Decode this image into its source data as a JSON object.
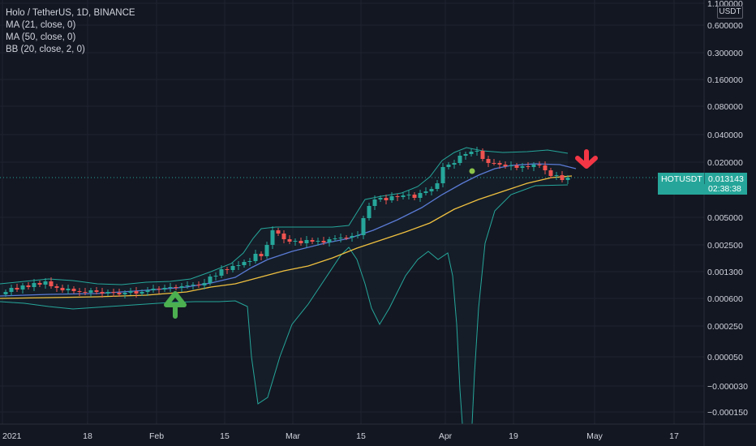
{
  "legend": {
    "title": "Holo / TetherUS, 1D, BINANCE",
    "ma21": "MA (21, close, 0)",
    "ma50": "MA (50, close, 0)",
    "bb": "BB (20, close, 2, 0)"
  },
  "price_axis": {
    "currency": "USDT",
    "labels": [
      "1.100000",
      "0.600000",
      "0.300000",
      "0.160000",
      "0.080000",
      "0.040000",
      "0.020000",
      "0.005000",
      "0.002500",
      "0.001300",
      "0.000600",
      "0.000250",
      "0.000050",
      "−0.000030",
      "−0.000150"
    ]
  },
  "time_axis": {
    "labels": [
      "2021",
      "18",
      "Feb",
      "15",
      "Mar",
      "15",
      "Apr",
      "19",
      "May",
      "17"
    ]
  },
  "price_tag": {
    "symbol": "HOTUSDT",
    "price": "0.013143",
    "countdown": "02:38:38"
  },
  "colors": {
    "background": "#131722",
    "up": "#26a69a",
    "down": "#ef5350",
    "ma21": "#5b7bd5",
    "ma50": "#f0c040",
    "bb": "#26a69a",
    "arrow_up": "#4caf50",
    "arrow_down": "#f23645",
    "signal_dot": "#8bc34a"
  },
  "chart_data": {
    "type": "candlestick",
    "title": "Holo / TetherUS, 1D, BINANCE",
    "y_scale": "log-like (TradingView)",
    "series": [
      {
        "name": "MA (21, close, 0)",
        "points": [
          [
            "Jan 13",
            0.00062
          ],
          [
            "Feb 8",
            0.0007
          ],
          [
            "Feb 22",
            0.0013
          ],
          [
            "Mar 8",
            0.002
          ],
          [
            "Mar 22",
            0.0036
          ],
          [
            "Apr 5",
            0.009
          ],
          [
            "Apr 15",
            0.019
          ],
          [
            "Apr 25",
            0.016
          ]
        ]
      },
      {
        "name": "MA (50, close, 0)",
        "points": [
          [
            "Jan 13",
            0.00058
          ],
          [
            "Feb 8",
            0.00064
          ],
          [
            "Feb 22",
            0.0009
          ],
          [
            "Mar 8",
            0.0014
          ],
          [
            "Mar 22",
            0.0024
          ],
          [
            "Apr 5",
            0.0045
          ],
          [
            "Apr 15",
            0.009
          ],
          [
            "Apr 25",
            0.014
          ]
        ]
      }
    ],
    "last_price": 0.013143,
    "annotations": [
      "up arrow near Feb 8",
      "down arrow near Apr 27"
    ]
  }
}
